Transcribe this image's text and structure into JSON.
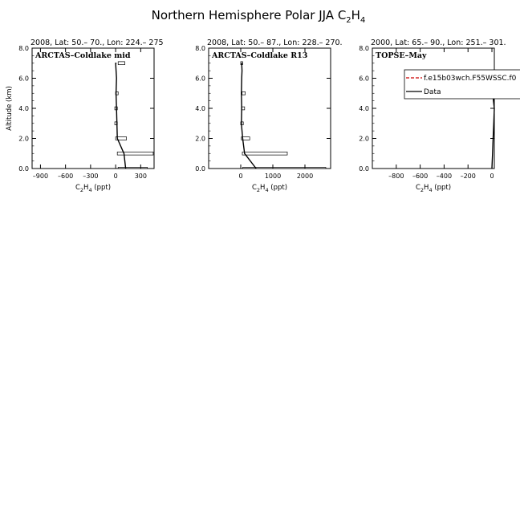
{
  "figure": {
    "title_main": "Northern Hemisphere Polar JJA C",
    "title_sub1": "2",
    "title_mid": "H",
    "title_sub2": "4"
  },
  "chart_data": [
    {
      "type": "line",
      "header": "2008, Lat:  50.– 70., Lon: 224.– 275",
      "panel_title": "ARCTAS–Coldlake mid",
      "xlabel_main": "C",
      "xlabel_sub1": "2",
      "xlabel_mid": "H",
      "xlabel_sub2": "4",
      "xlabel_unit": " (ppt)",
      "ylabel": "Altitude (km)",
      "xlim": [
        -1000,
        460
      ],
      "ylim": [
        0,
        8
      ],
      "xticks": [
        -900,
        -600,
        -300,
        0,
        300
      ],
      "xtick_labels": [
        "–900",
        "–600",
        "–300",
        "0",
        "300"
      ],
      "yticks": [
        0,
        2,
        4,
        6,
        8
      ],
      "ytick_labels": [
        "0.0",
        "2.0",
        "4.0",
        "6.0",
        "8.0"
      ],
      "series": [
        {
          "line": "solid",
          "x": [
            120,
            100,
            20,
            15,
            10,
            5,
            10,
            0,
            10
          ],
          "y": [
            0,
            1,
            2,
            3,
            4,
            5,
            6,
            7,
            7
          ]
        }
      ],
      "boxes": [
        {
          "x0": 30,
          "x1": 110,
          "y0": 6.9,
          "y1": 7.1
        },
        {
          "x0": 0,
          "x1": 30,
          "y0": 4.9,
          "y1": 5.1
        },
        {
          "x0": -10,
          "x1": 20,
          "y0": 3.9,
          "y1": 4.1
        },
        {
          "x0": -10,
          "x1": 20,
          "y0": 2.9,
          "y1": 3.1
        },
        {
          "x0": 0,
          "x1": 130,
          "y0": 1.9,
          "y1": 2.1
        },
        {
          "x0": 20,
          "x1": 450,
          "y0": 0.9,
          "y1": 1.1
        },
        {
          "x0": 30,
          "x1": 380,
          "y0": 0.0,
          "y1": 0.08
        }
      ]
    },
    {
      "type": "line",
      "header": "2008, Lat:  50.– 87., Lon: 228.– 270.",
      "panel_title": "ARCTAS–Coldlake R13",
      "xlabel_main": "C",
      "xlabel_sub1": "2",
      "xlabel_mid": "H",
      "xlabel_sub2": "4",
      "xlabel_unit": " (ppt)",
      "xlim": [
        -1000,
        2800
      ],
      "ylim": [
        0,
        8
      ],
      "xticks": [
        0,
        1000,
        2000
      ],
      "xtick_labels": [
        "0",
        "1000",
        "2000"
      ],
      "yticks": [
        0,
        2,
        4,
        6,
        8
      ],
      "ytick_labels": [
        "0.0",
        "2.0",
        "4.0",
        "6.0",
        "8.0"
      ],
      "series": [
        {
          "line": "solid",
          "x": [
            480,
            120,
            60,
            20,
            30,
            20,
            30,
            40,
            30,
            20
          ],
          "y": [
            0,
            1,
            2,
            3,
            4,
            5,
            6,
            6.5,
            7,
            7
          ]
        }
      ],
      "boxes": [
        {
          "x0": 0,
          "x1": 60,
          "y0": 6.9,
          "y1": 7.1
        },
        {
          "x0": 40,
          "x1": 140,
          "y0": 4.9,
          "y1": 5.1
        },
        {
          "x0": 20,
          "x1": 120,
          "y0": 3.9,
          "y1": 4.1
        },
        {
          "x0": 0,
          "x1": 80,
          "y0": 2.9,
          "y1": 3.1
        },
        {
          "x0": 20,
          "x1": 280,
          "y0": 1.9,
          "y1": 2.1
        },
        {
          "x0": 50,
          "x1": 1450,
          "y0": 0.9,
          "y1": 1.1
        },
        {
          "x0": 60,
          "x1": 2650,
          "y0": 0.0,
          "y1": 0.08
        }
      ]
    },
    {
      "type": "line",
      "header": "2000, Lat: 65.– 90., Lon: 251.– 301.",
      "panel_title": "TOPSE–May",
      "xlabel_main": "C",
      "xlabel_sub1": "2",
      "xlabel_mid": "H",
      "xlabel_sub2": "4",
      "xlabel_unit": " (ppt)",
      "xlim": [
        -1000,
        20
      ],
      "ylim": [
        0,
        8
      ],
      "xticks": [
        -800,
        -600,
        -400,
        -200,
        0
      ],
      "xtick_labels": [
        "–800",
        "–600",
        "–400",
        "–200",
        "0"
      ],
      "yticks": [
        0,
        2,
        4,
        6,
        8
      ],
      "ytick_labels": [
        "0.0",
        "2.0",
        "4.0",
        "6.0",
        "8.0"
      ],
      "series": [
        {
          "line": "solid",
          "x": [
            0,
            5,
            10,
            15,
            20,
            10,
            0
          ],
          "y": [
            0,
            1,
            2,
            3,
            4,
            4.7,
            5
          ]
        }
      ],
      "boxes": [],
      "legend": {
        "items": [
          {
            "label": "f.e15b03wch.F55WSSC.f0",
            "color": "#cc0000",
            "dash": "4,2"
          },
          {
            "label": "Data",
            "color": "#000000",
            "dash": ""
          }
        ]
      }
    }
  ]
}
